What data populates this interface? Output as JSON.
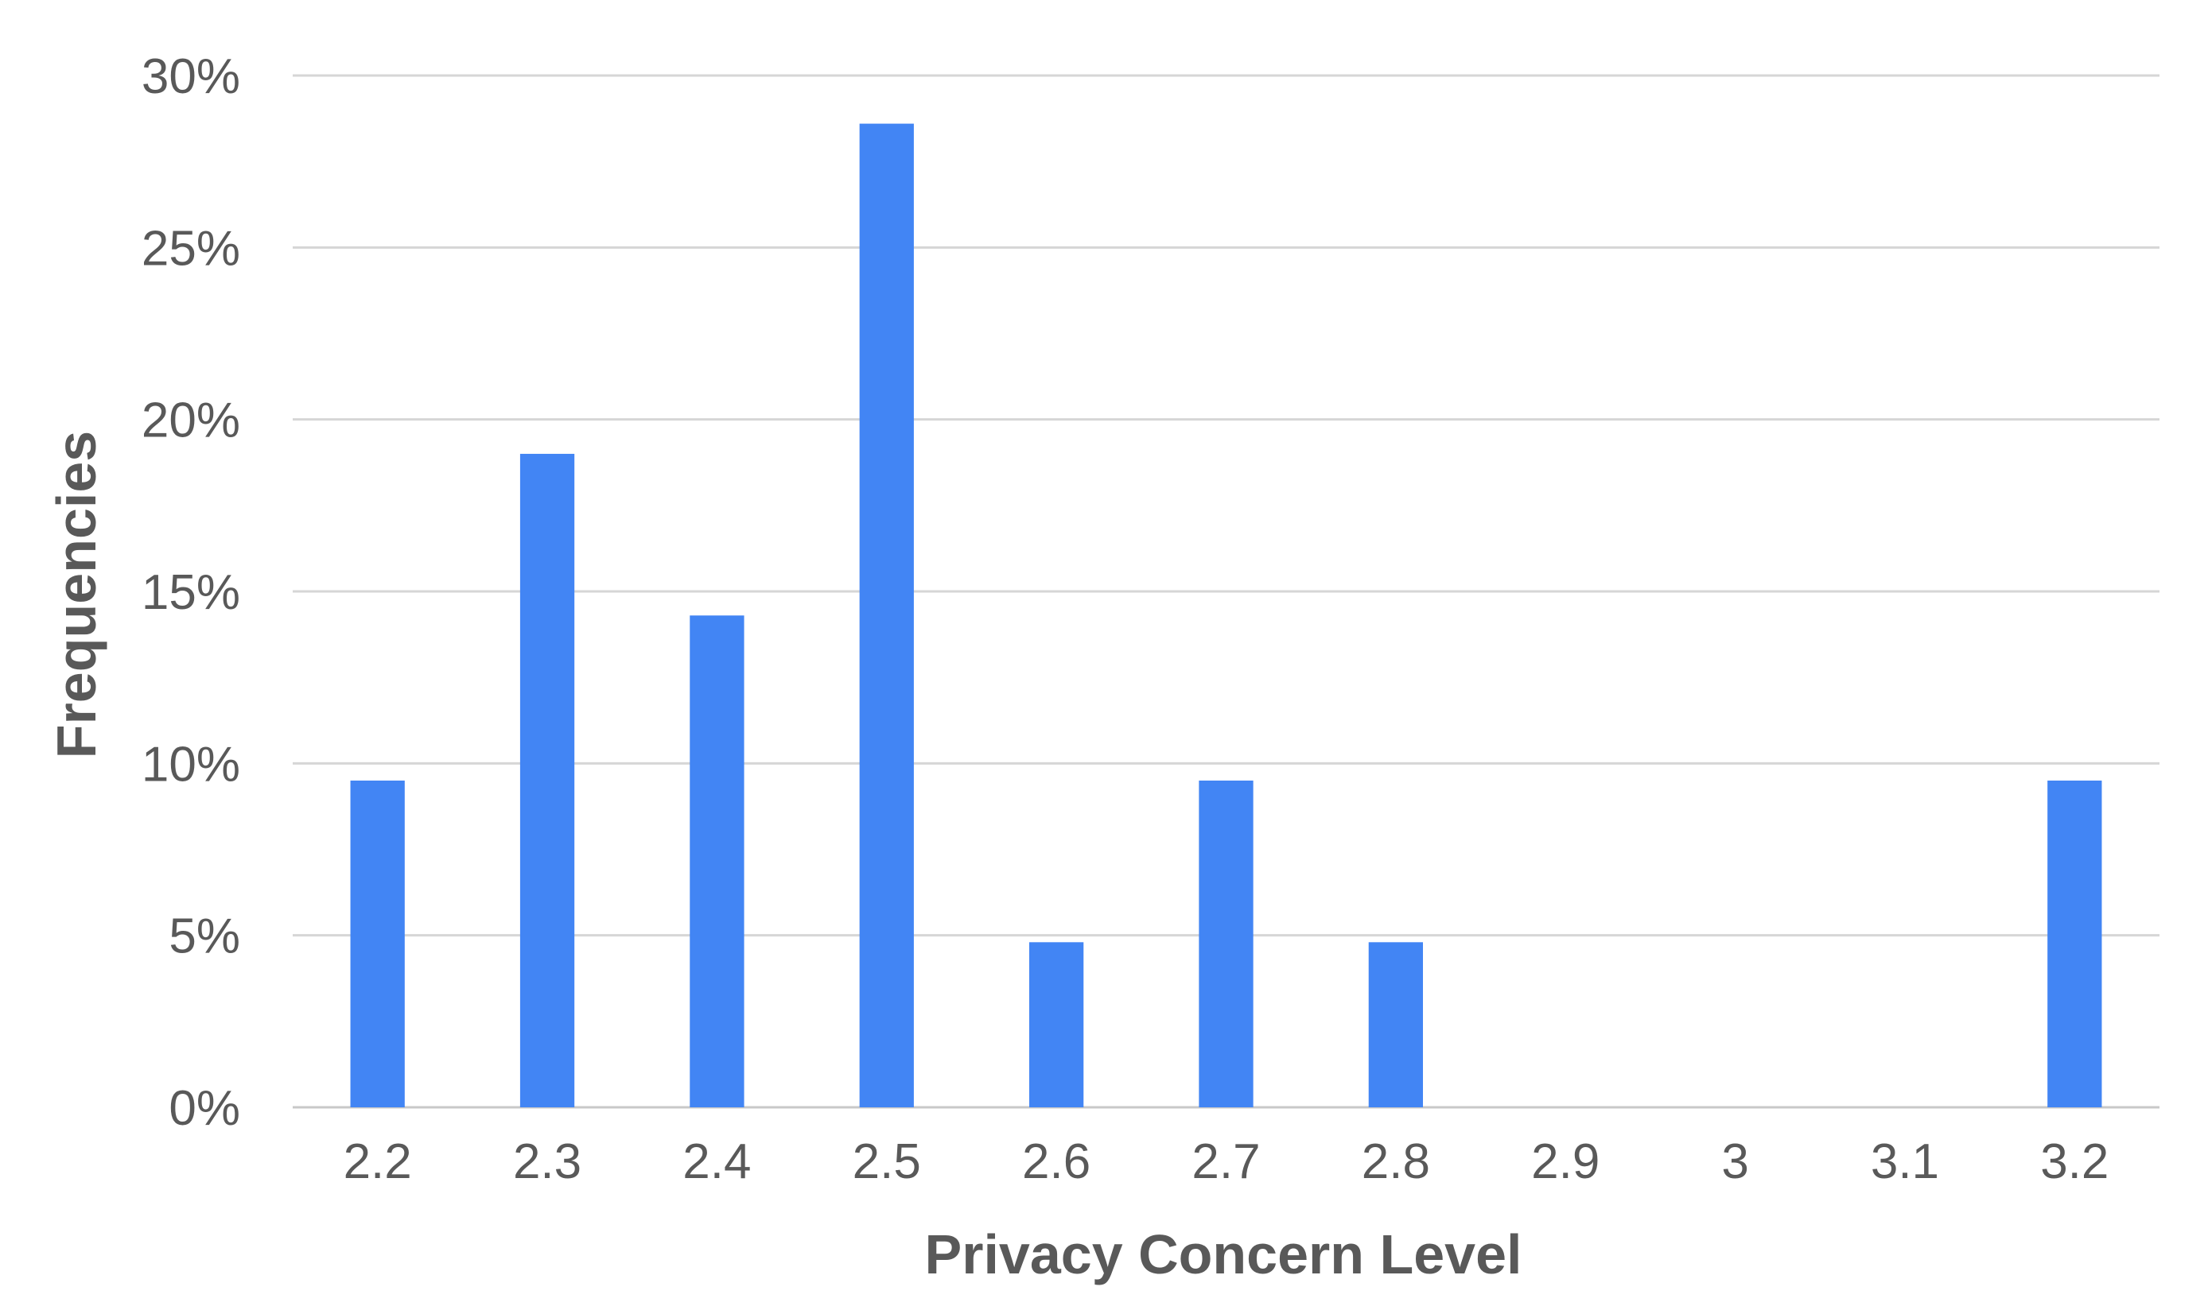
{
  "chart_data": {
    "type": "bar",
    "title": "",
    "xlabel": "Privacy Concern Level",
    "ylabel": "Frequencies",
    "categories": [
      "2.2",
      "2.3",
      "2.4",
      "2.5",
      "2.6",
      "2.7",
      "2.8",
      "2.9",
      "3",
      "3.1",
      "3.2"
    ],
    "values": [
      9.5,
      19.0,
      14.3,
      28.6,
      4.8,
      9.5,
      4.8,
      0,
      0,
      0,
      9.5
    ],
    "ylim": [
      0,
      30
    ],
    "y_ticks": [
      "0%",
      "5%",
      "10%",
      "15%",
      "20%",
      "25%",
      "30%"
    ],
    "y_unit": "%",
    "grid": true,
    "legend": "none",
    "bar_color": "#4285f4"
  }
}
